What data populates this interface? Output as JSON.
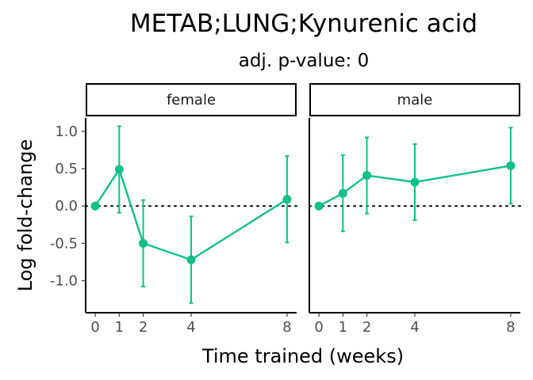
{
  "chart_data": {
    "type": "line",
    "title": "METAB;LUNG;Kynurenic acid",
    "subtitle": "adj. p-value: 0",
    "xlabel": "Time trained (weeks)",
    "ylabel": "Log fold-change",
    "x_ticks": [
      0,
      1,
      2,
      4,
      8
    ],
    "y_ticks": [
      1.0,
      0.5,
      0.0,
      -0.5,
      -1.0
    ],
    "y_tick_labels": [
      "1.0",
      "0.5",
      "0.0",
      "-0.5",
      "-1.0"
    ],
    "xlim": [
      -0.4,
      8.4
    ],
    "ylim": [
      -1.43,
      1.18
    ],
    "reference_line": 0,
    "grid": false,
    "color": "#10bf8a",
    "panels": [
      {
        "name": "female",
        "x": [
          0,
          1,
          2,
          4,
          8
        ],
        "y": [
          0.0,
          0.49,
          -0.5,
          -0.72,
          0.09
        ],
        "lower": [
          0.0,
          -0.09,
          -1.08,
          -1.3,
          -0.49
        ],
        "upper": [
          0.0,
          1.07,
          0.08,
          -0.14,
          0.67
        ]
      },
      {
        "name": "male",
        "x": [
          0,
          1,
          2,
          4,
          8
        ],
        "y": [
          0.0,
          0.17,
          0.41,
          0.32,
          0.54
        ],
        "lower": [
          0.0,
          -0.34,
          -0.1,
          -0.19,
          0.03
        ],
        "upper": [
          0.0,
          0.68,
          0.92,
          0.83,
          1.05
        ]
      }
    ]
  }
}
